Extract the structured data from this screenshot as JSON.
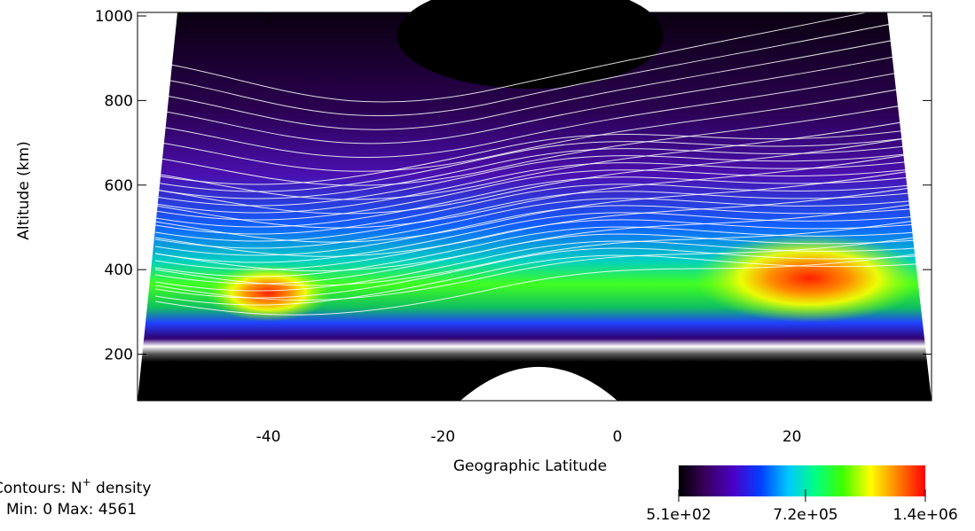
{
  "chart_data": {
    "type": "contour",
    "x_label": "Geographic Latitude",
    "y_label": "Altitude (km)",
    "xlim": [
      -55,
      36
    ],
    "xticks": [
      -40,
      -20,
      0,
      20
    ],
    "ylim": [
      90,
      1000
    ],
    "yticks": [
      200,
      400,
      600,
      800,
      1000
    ],
    "colorbar": {
      "clim": [
        510,
        1400000
      ],
      "ticks": [
        {
          "value": 510,
          "label": "5.1e+02"
        },
        {
          "value": 720000,
          "label": "7.2e+05"
        },
        {
          "value": 1400000,
          "label": "1.4e+06"
        }
      ],
      "colors": [
        "#000000",
        "#3a0060",
        "#4b00c8",
        "#0040ff",
        "#00c8ff",
        "#00ff80",
        "#40ff00",
        "#ffff00",
        "#ff8000",
        "#ff0000"
      ]
    },
    "annotation": {
      "prefix": "Contours: N",
      "sup": "+",
      "suffix": " density",
      "range": "Min: 0 Max: 4561"
    }
  }
}
